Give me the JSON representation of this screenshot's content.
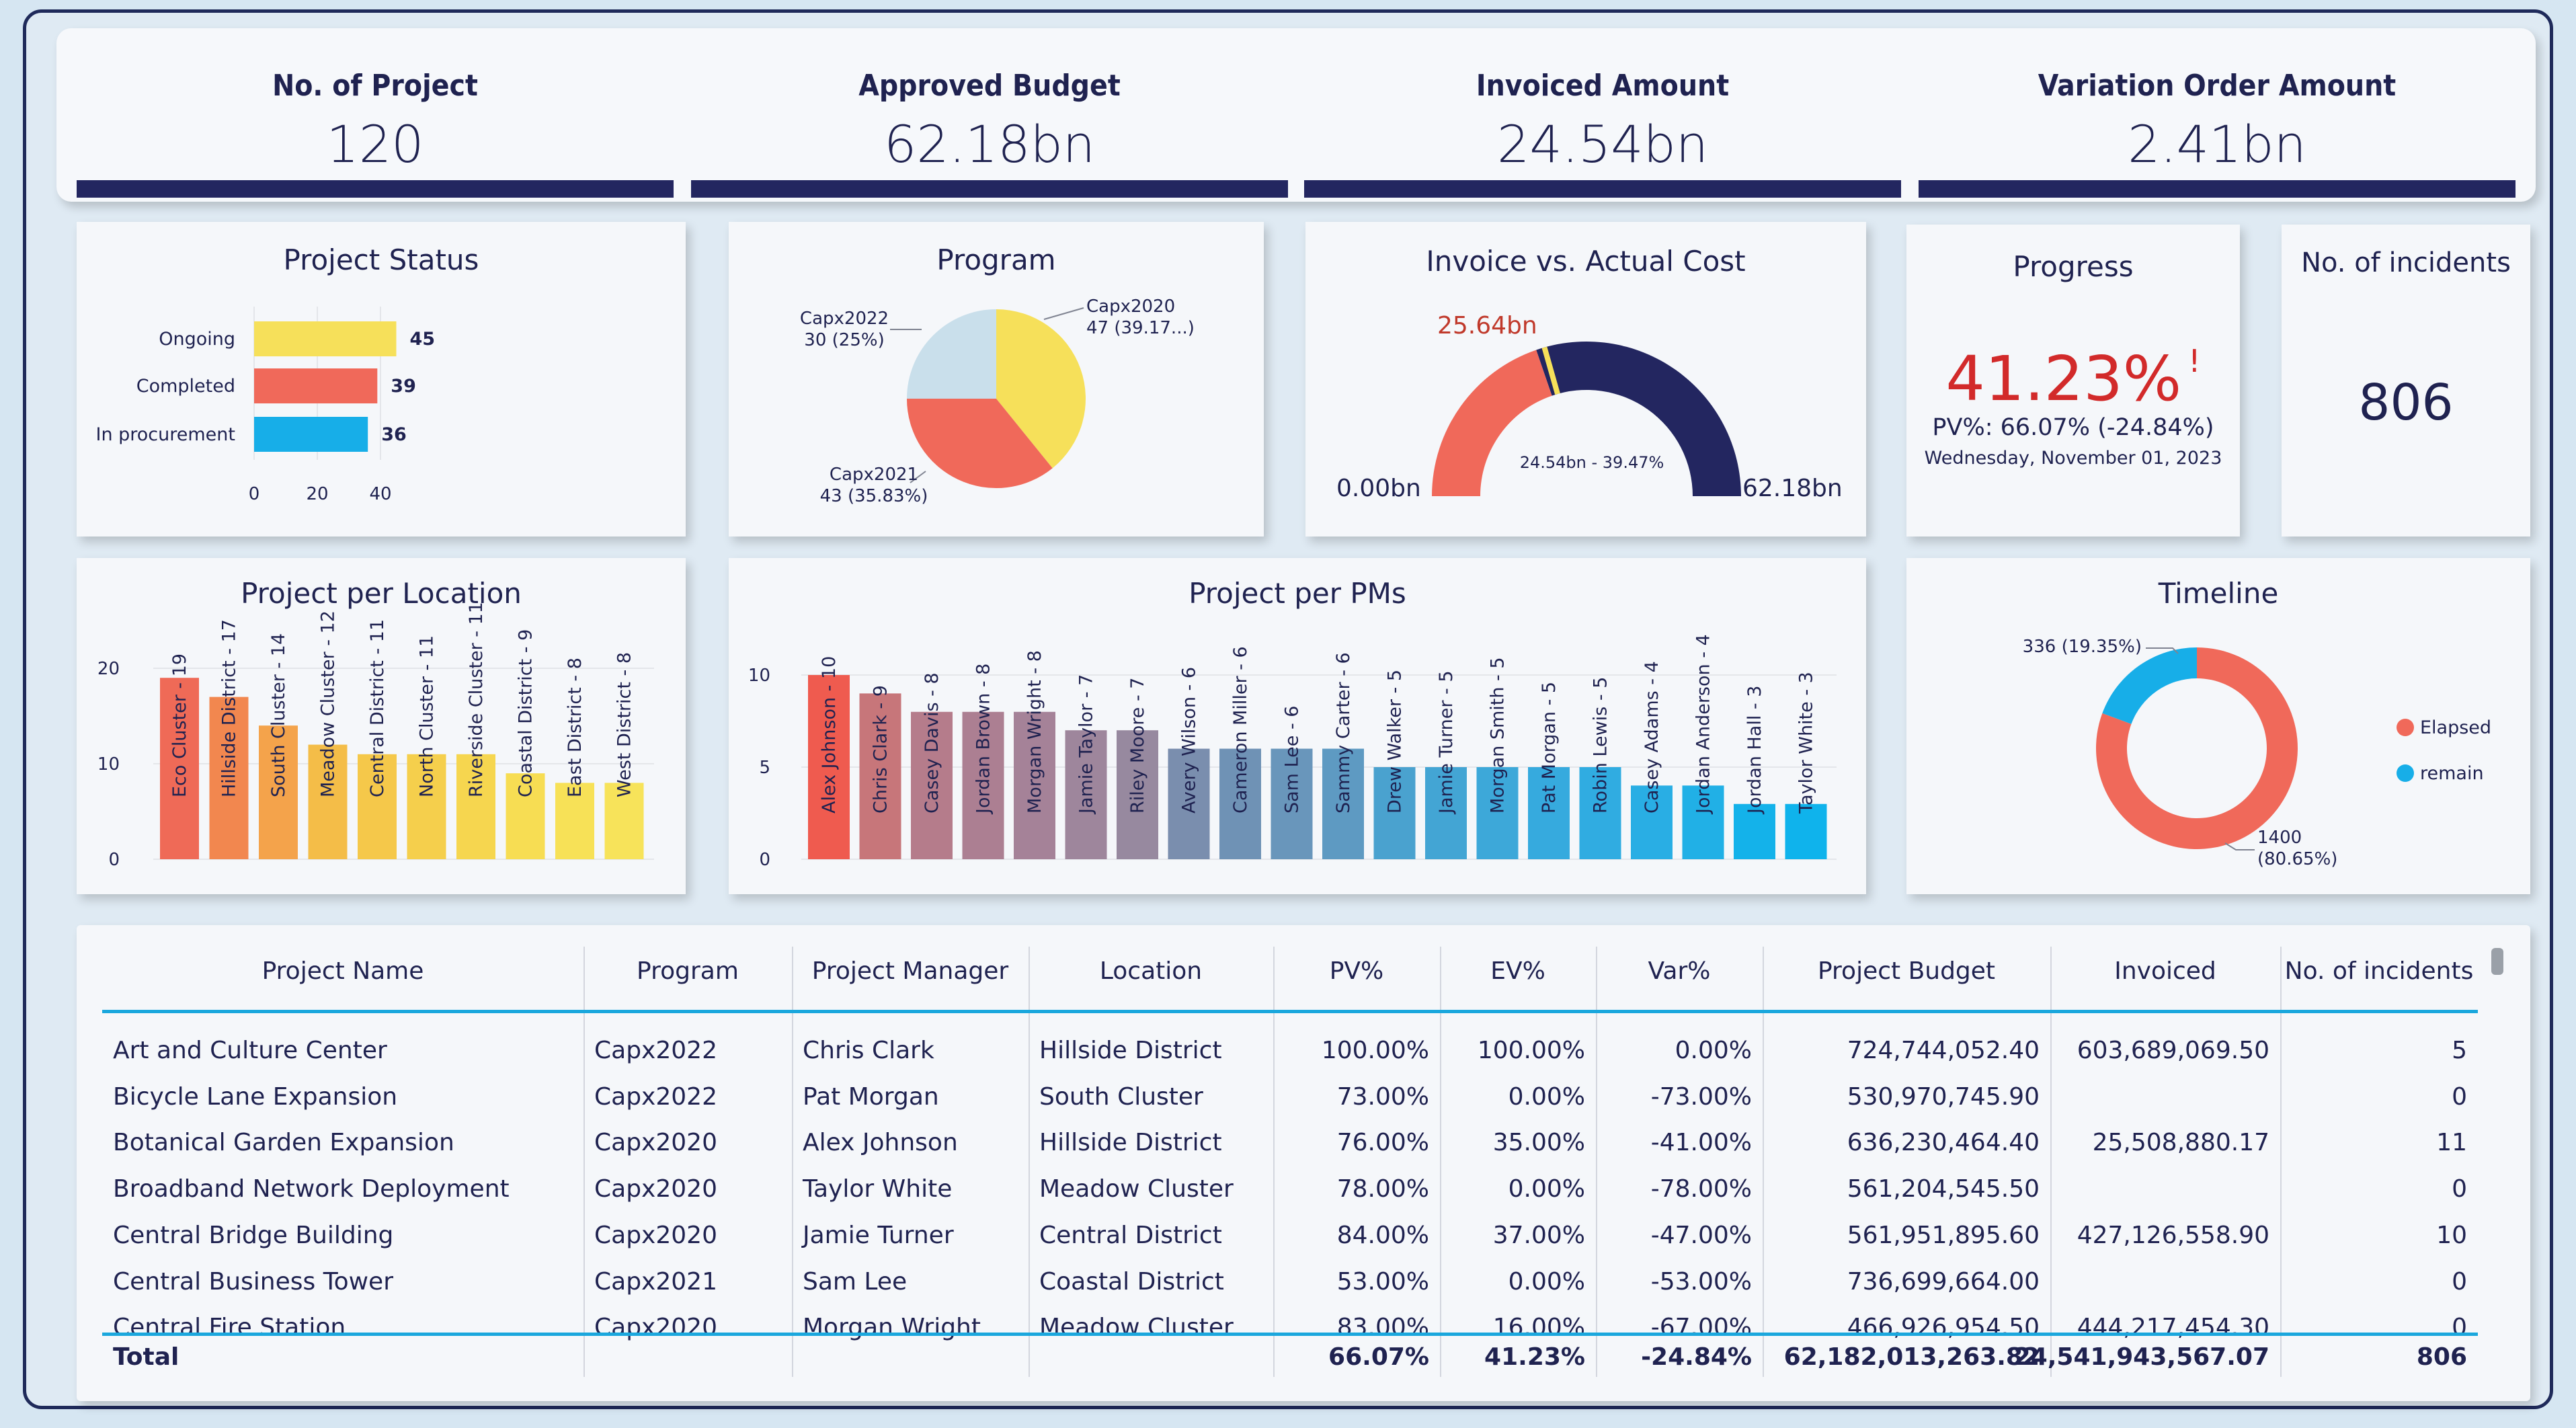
{
  "kpis": [
    {
      "label": "No. of Project",
      "value": "120"
    },
    {
      "label": "Approved Budget",
      "value": "62.18bn"
    },
    {
      "label": "Invoiced Amount",
      "value": "24.54bn"
    },
    {
      "label": "Variation Order Amount",
      "value": "2.41bn"
    }
  ],
  "project_status": {
    "title": "Project Status",
    "chart_data": {
      "type": "bar",
      "orientation": "horizontal",
      "categories": [
        "Ongoing",
        "Completed",
        "In procurement"
      ],
      "values": [
        45,
        39,
        36
      ],
      "colors": [
        "#f6e05a",
        "#f0695a",
        "#17aee8"
      ],
      "xlim": [
        0,
        45
      ],
      "xticks": [
        "0",
        "20",
        "40"
      ]
    }
  },
  "program": {
    "title": "Program",
    "chart_data": {
      "type": "pie",
      "categories": [
        "Capx2020",
        "Capx2021",
        "Capx2022"
      ],
      "values": [
        47,
        43,
        30
      ],
      "labels": [
        "Capx2020",
        "Capx2021",
        "Capx2022"
      ],
      "sublabels": [
        "47 (39.17...)",
        "43 (35.83%)",
        "30 (25%)"
      ],
      "colors": [
        "#f6e05a",
        "#f0695a",
        "#c9dfeb"
      ]
    }
  },
  "invoice_vs_cost": {
    "title": "Invoice vs. Actual Cost",
    "min_label": "0.00bn",
    "max_label": "62.18bn",
    "actual_label": "25.64bn",
    "center_label": "24.54bn - 39.47%",
    "value_fraction": 0.3947,
    "target_fraction": 0.4123,
    "colors": {
      "fill": "#f0695a",
      "rest": "#232660",
      "target": "#f6e05a",
      "actual_label": "#c0392b"
    }
  },
  "progress": {
    "title": "Progress",
    "value": "41.23%",
    "alert": "!",
    "pv_line": "PV%: 66.07% (-24.84%)",
    "date": "Wednesday, November 01, 2023",
    "value_color": "#d22a2a"
  },
  "incidents": {
    "title": "No. of incidents",
    "value": "806"
  },
  "location": {
    "title": "Project per Location",
    "chart_data": {
      "type": "bar",
      "categories": [
        "Eco Cluster",
        "Hillside District",
        "South Cluster",
        "Meadow Cluster",
        "Central District",
        "North Cluster",
        "Riverside Cluster",
        "Coastal District",
        "East District",
        "West District"
      ],
      "values": [
        19,
        17,
        14,
        12,
        11,
        11,
        11,
        9,
        8,
        8
      ],
      "labels": [
        "Eco Cluster - 19",
        "Hillside District - 17",
        "South Cluster - 14",
        "Meadow Cluster - 12",
        "Central District - 11",
        "North Cluster - 11",
        "Riverside Cluster - 11",
        "Coastal District - 9",
        "East District - 8",
        "West District - 8"
      ],
      "ylim": [
        0,
        20
      ],
      "yticks": [
        "0",
        "10",
        "20"
      ],
      "colors": [
        "#ef6a57",
        "#f2874f",
        "#f4a34b",
        "#f4bd48",
        "#f5c84a",
        "#f5cf4c",
        "#f6d64f",
        "#f7dd53",
        "#f7e157",
        "#f7e35a"
      ]
    }
  },
  "pms": {
    "title": "Project per PMs",
    "chart_data": {
      "type": "bar",
      "categories": [
        "Alex Johnson",
        "Chris Clark",
        "Casey Davis",
        "Jordan Brown",
        "Morgan Wright",
        "Jamie Taylor",
        "Riley Moore",
        "Avery Wilson",
        "Cameron Miller",
        "Sam Lee",
        "Sammy Carter",
        "Drew Walker",
        "Jamie Turner",
        "Morgan Smith",
        "Pat Morgan",
        "Robin Lewis",
        "Casey Adams",
        "Jordan Anderson",
        "Jordan Hall",
        "Taylor White"
      ],
      "values": [
        10,
        9,
        8,
        8,
        8,
        7,
        7,
        6,
        6,
        6,
        6,
        5,
        5,
        5,
        5,
        5,
        4,
        4,
        3,
        3
      ],
      "labels": [
        "Alex Johnson - 10",
        "Chris Clark - 9",
        "Casey Davis - 8",
        "Jordan Brown - 8",
        "Morgan Wright - 8",
        "Jamie Taylor - 7",
        "Riley Moore - 7",
        "Avery Wilson - 6",
        "Cameron Miller - 6",
        "Sam Lee - 6",
        "Sammy Carter - 6",
        "Drew Walker - 5",
        "Jamie Turner - 5",
        "Morgan Smith - 5",
        "Pat Morgan - 5",
        "Robin Lewis - 5",
        "Casey Adams - 4",
        "Jordan Anderson - 4",
        "Jordan Hall - 3",
        "Taylor White - 3"
      ],
      "ylim": [
        0,
        10
      ],
      "yticks": [
        "0",
        "5",
        "10"
      ],
      "colors": [
        "#ef5b4f",
        "#c7767a",
        "#b57c8b",
        "#ac7f92",
        "#a58298",
        "#9e869c",
        "#97899f",
        "#7a8eae",
        "#6f92b5",
        "#6996bb",
        "#5e9ac2",
        "#4aa2cf",
        "#43a5d4",
        "#3da8d9",
        "#36aade",
        "#30ace1",
        "#29aee4",
        "#21b0e6",
        "#14b2ea",
        "#0fb3ec"
      ]
    }
  },
  "timeline": {
    "title": "Timeline",
    "chart_data": {
      "type": "pie",
      "categories": [
        "Elapsed",
        "remain"
      ],
      "values": [
        1400,
        336
      ],
      "labels": [
        "1400",
        "336 (19.35%)"
      ],
      "sublabels": [
        "(80.65%)",
        ""
      ],
      "colors": [
        "#f0695a",
        "#17aee8"
      ]
    },
    "legend": [
      "Elapsed",
      "remain"
    ]
  },
  "table": {
    "columns": [
      "Project Name",
      "Program",
      "Project Manager",
      "Location",
      "PV%",
      "EV%",
      "Var%",
      "Project Budget",
      "Invoiced",
      "No. of incidents"
    ],
    "rows": [
      [
        "Art and Culture Center",
        "Capx2022",
        "Chris Clark",
        "Hillside District",
        "100.00%",
        "100.00%",
        "0.00%",
        "724,744,052.40",
        "603,689,069.50",
        "5"
      ],
      [
        "Bicycle Lane Expansion",
        "Capx2022",
        "Pat Morgan",
        "South Cluster",
        "73.00%",
        "0.00%",
        "-73.00%",
        "530,970,745.90",
        "",
        "0"
      ],
      [
        "Botanical Garden Expansion",
        "Capx2020",
        "Alex Johnson",
        "Hillside District",
        "76.00%",
        "35.00%",
        "-41.00%",
        "636,230,464.40",
        "25,508,880.17",
        "11"
      ],
      [
        "Broadband Network Deployment",
        "Capx2020",
        "Taylor White",
        "Meadow Cluster",
        "78.00%",
        "0.00%",
        "-78.00%",
        "561,204,545.50",
        "",
        "0"
      ],
      [
        "Central Bridge Building",
        "Capx2020",
        "Jamie Turner",
        "Central District",
        "84.00%",
        "37.00%",
        "-47.00%",
        "561,951,895.60",
        "427,126,558.90",
        "10"
      ],
      [
        "Central Business Tower",
        "Capx2021",
        "Sam Lee",
        "Coastal District",
        "53.00%",
        "0.00%",
        "-53.00%",
        "736,699,664.00",
        "",
        "0"
      ],
      [
        "Central Fire Station",
        "Capx2020",
        "Morgan Wright",
        "Meadow Cluster",
        "83.00%",
        "16.00%",
        "-67.00%",
        "466,926,954.50",
        "444,217,454.30",
        "0"
      ]
    ],
    "total": [
      "Total",
      "",
      "",
      "",
      "66.07%",
      "41.23%",
      "-24.84%",
      "62,182,013,263.82",
      "24,541,943,567.07",
      "806"
    ]
  }
}
